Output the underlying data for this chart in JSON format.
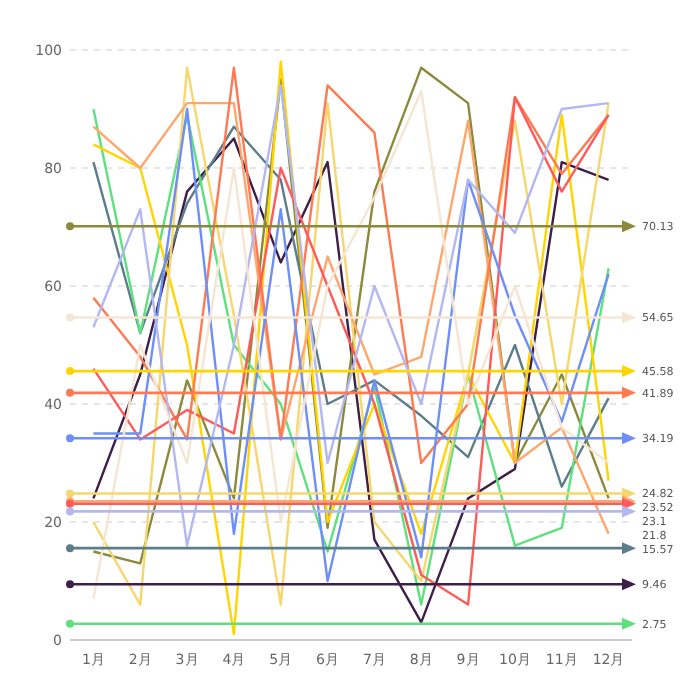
{
  "chart_data": {
    "type": "line",
    "categories": [
      "1月",
      "2月",
      "3月",
      "4月",
      "5月",
      "6月",
      "7月",
      "8月",
      "9月",
      "10月",
      "11月",
      "12月"
    ],
    "series": [
      {
        "color": "#3d1f4a",
        "values": [
          24,
          45,
          76,
          85,
          64,
          81,
          17,
          3,
          24,
          29,
          81,
          78
        ]
      },
      {
        "color": "#8b8a3c",
        "values": [
          15,
          13,
          44,
          24,
          95,
          19,
          76,
          97,
          91,
          30,
          45,
          24
        ]
      },
      {
        "color": "#5b7e8a",
        "values": [
          81,
          52,
          74,
          87,
          78,
          40,
          44,
          38,
          31,
          50,
          26,
          41
        ]
      },
      {
        "color": "#5ee07f",
        "values": [
          90,
          52,
          89,
          50,
          40,
          15,
          43,
          6,
          45,
          16,
          19,
          63
        ]
      },
      {
        "color": "#ffd500",
        "values": [
          84,
          80,
          50,
          1,
          98,
          20,
          40,
          18,
          45,
          30,
          89,
          27
        ]
      },
      {
        "color": "#f5d76e",
        "values": [
          20,
          6,
          97,
          55,
          6,
          91,
          20,
          10,
          45,
          88,
          40,
          91
        ]
      },
      {
        "color": "#ffa66e",
        "values": [
          87,
          80,
          91,
          91,
          34,
          65,
          45,
          48,
          88,
          30,
          36,
          18
        ]
      },
      {
        "color": "#ff7a50",
        "values": [
          58,
          48,
          34,
          97,
          34,
          94,
          86,
          30,
          40,
          92,
          79,
          89
        ]
      },
      {
        "color": "#ff5a5a",
        "values": [
          46,
          34,
          39,
          35,
          80,
          60,
          40,
          11,
          6,
          92,
          76,
          89
        ]
      },
      {
        "color": "#6d8ff7",
        "values": [
          35,
          35,
          90,
          18,
          73,
          10,
          44,
          14,
          78,
          55,
          37,
          62
        ]
      },
      {
        "color": "#b3b8f0",
        "values": [
          53,
          73,
          16,
          50,
          94,
          30,
          60,
          40,
          78,
          69,
          90,
          91
        ]
      },
      {
        "color": "#f5e6d3",
        "values": [
          7,
          50,
          30,
          80,
          20,
          60,
          75,
          93,
          40,
          60,
          36,
          30
        ]
      }
    ],
    "ylim": [
      0,
      100
    ],
    "yticks": [
      0,
      20,
      40,
      60,
      80,
      100
    ],
    "grid": "y",
    "marker": "none",
    "line_style": "solid",
    "ref_lines": [
      {
        "axis": "y",
        "value": 70.13,
        "label": "70.13",
        "color": "#8b8a3c"
      },
      {
        "axis": "y",
        "value": 54.65,
        "label": "54.65",
        "color": "#f5e6d3"
      },
      {
        "axis": "y",
        "value": 45.58,
        "label": "45.58",
        "color": "#ffd500"
      },
      {
        "axis": "y",
        "value": 41.89,
        "label": "41.89",
        "color": "#ff7a50"
      },
      {
        "axis": "y",
        "value": 34.19,
        "label": "34.19",
        "color": "#6d8ff7"
      },
      {
        "axis": "y",
        "value": 24.82,
        "label": "24.82",
        "color": "#f5d76e"
      },
      {
        "axis": "y",
        "value": 23.52,
        "label": "23.52",
        "color": "#ffa66e"
      },
      {
        "axis": "y",
        "value": 23.1,
        "label": "23.1",
        "color": "#ff5a5a"
      },
      {
        "axis": "y",
        "value": 21.8,
        "label": "21.8",
        "color": "#b3b8f0"
      },
      {
        "axis": "y",
        "value": 15.57,
        "label": "15.57",
        "color": "#5b7e8a"
      },
      {
        "axis": "y",
        "value": 9.46,
        "label": "9.46",
        "color": "#3d1f4a"
      },
      {
        "axis": "y",
        "value": 2.75,
        "label": "2.75",
        "color": "#5ee07f"
      }
    ]
  }
}
